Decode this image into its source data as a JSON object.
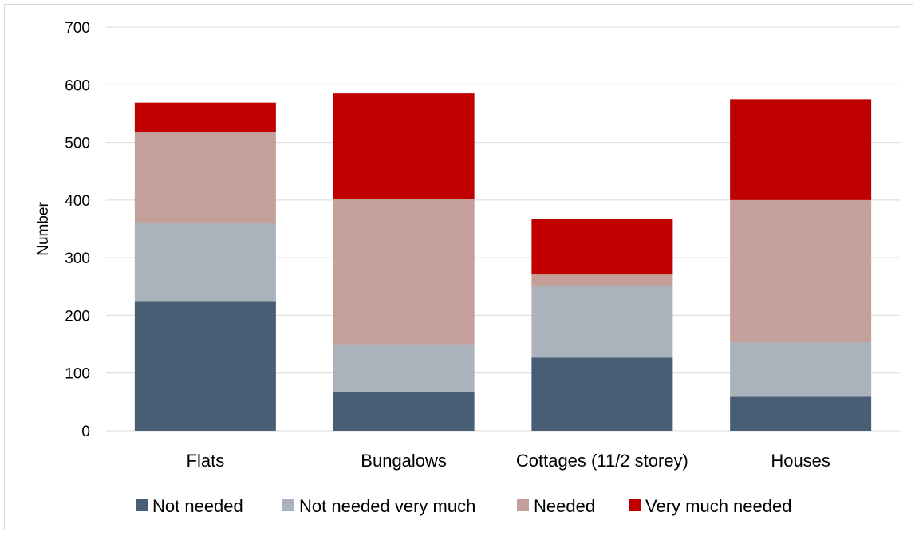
{
  "chart_data": {
    "type": "bar",
    "stacked": true,
    "categories": [
      "Flats",
      "Bungalows",
      "Cottages (11/2 storey)",
      "Houses"
    ],
    "series": [
      {
        "name": "Not needed",
        "color": "#485e75",
        "values": [
          225,
          67,
          127,
          59
        ]
      },
      {
        "name": "Not needed very much",
        "color": "#aab3bc",
        "values": [
          135,
          83,
          124,
          94
        ]
      },
      {
        "name": "Needed",
        "color": "#c3a099",
        "values": [
          158,
          252,
          20,
          247
        ]
      },
      {
        "name": "Very much needed",
        "color": "#c00000",
        "values": [
          51,
          183,
          96,
          175
        ]
      }
    ],
    "ylabel": "Number",
    "ylim": [
      0,
      700
    ],
    "yticks": [
      0,
      100,
      200,
      300,
      400,
      500,
      600,
      700
    ],
    "grid": true,
    "legend": "bottom"
  }
}
